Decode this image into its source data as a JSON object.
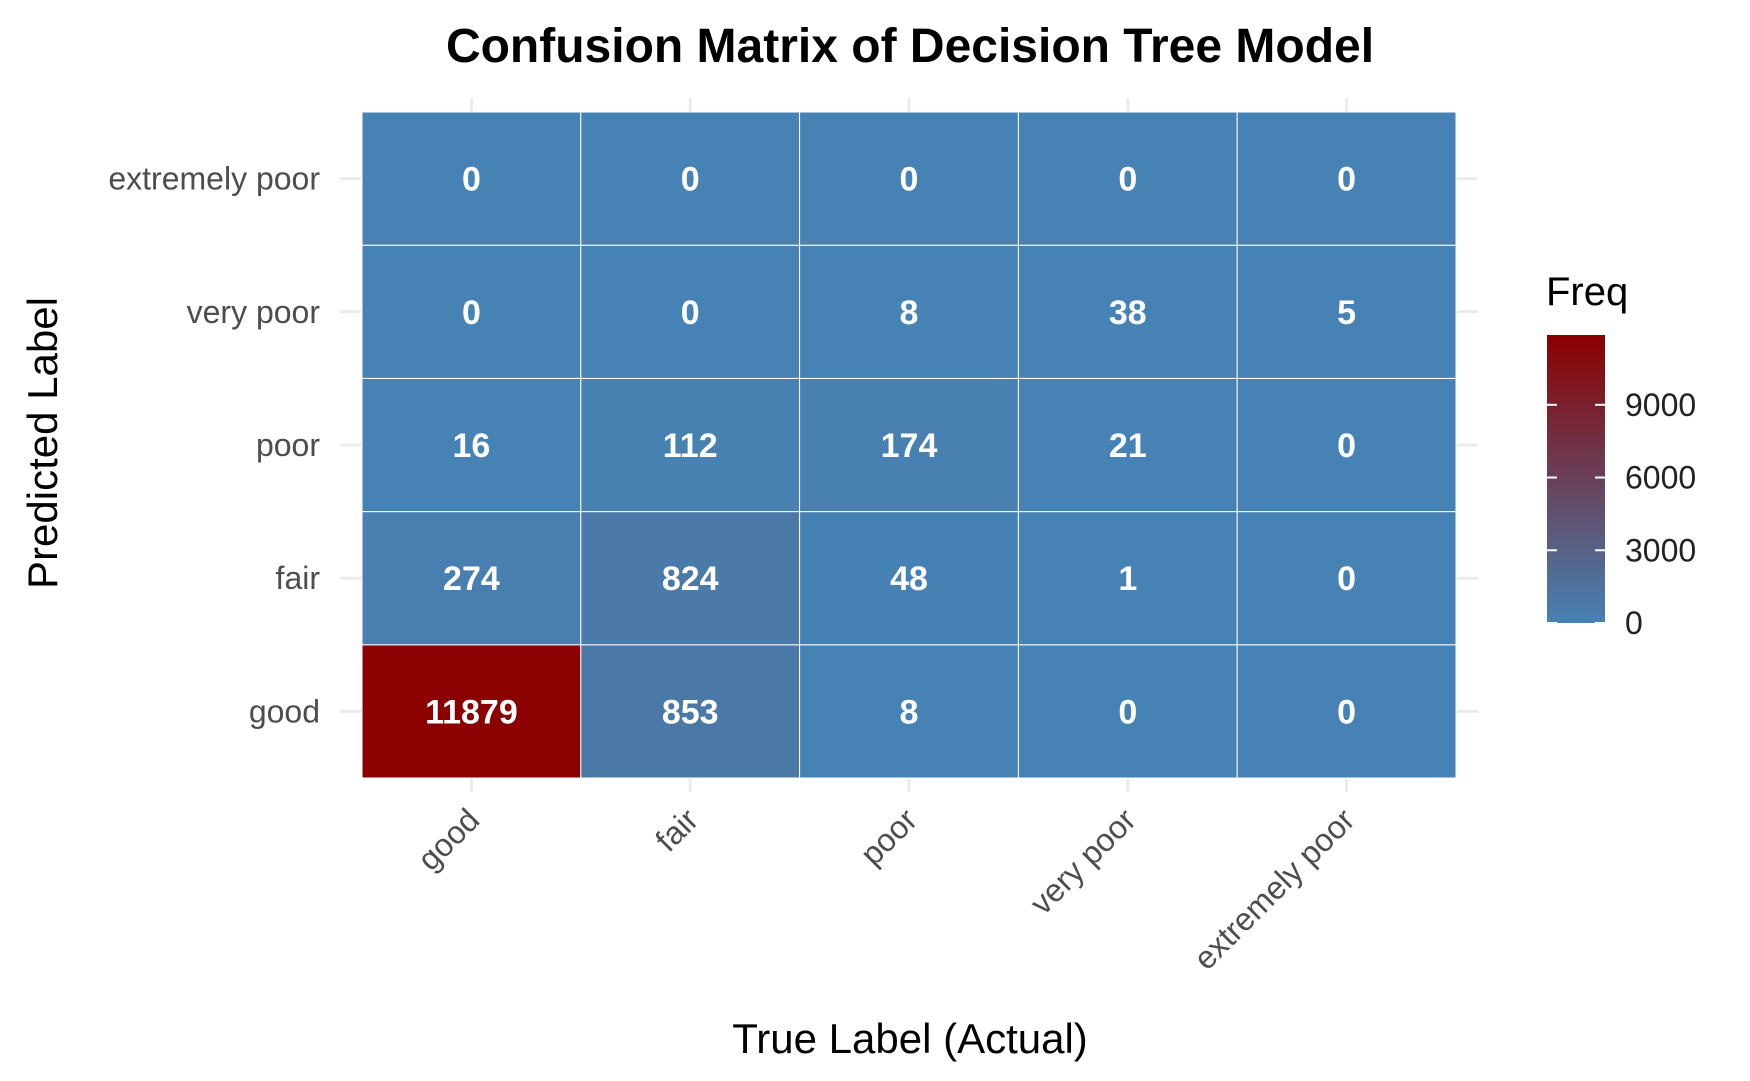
{
  "chart_data": {
    "type": "heatmap",
    "title": "Confusion Matrix of Decision Tree Model",
    "xlabel": "True Label (Actual)",
    "ylabel": "Predicted Label",
    "x_categories": [
      "good",
      "fair",
      "poor",
      "very poor",
      "extremely poor"
    ],
    "y_categories": [
      "good",
      "fair",
      "poor",
      "very poor",
      "extremely poor"
    ],
    "values": [
      [
        11879,
        853,
        8,
        0,
        0
      ],
      [
        274,
        824,
        48,
        1,
        0
      ],
      [
        16,
        112,
        174,
        21,
        0
      ],
      [
        0,
        0,
        8,
        38,
        5
      ],
      [
        0,
        0,
        0,
        0,
        0
      ]
    ],
    "legend": {
      "title": "Freq",
      "ticks": [
        0,
        3000,
        6000,
        9000
      ],
      "range": [
        0,
        11879
      ]
    },
    "colors": {
      "low": "#4682b4",
      "high": "#8b0000",
      "cell_border": "#ffffff",
      "grid": "#ebebeb"
    },
    "grid": true
  }
}
